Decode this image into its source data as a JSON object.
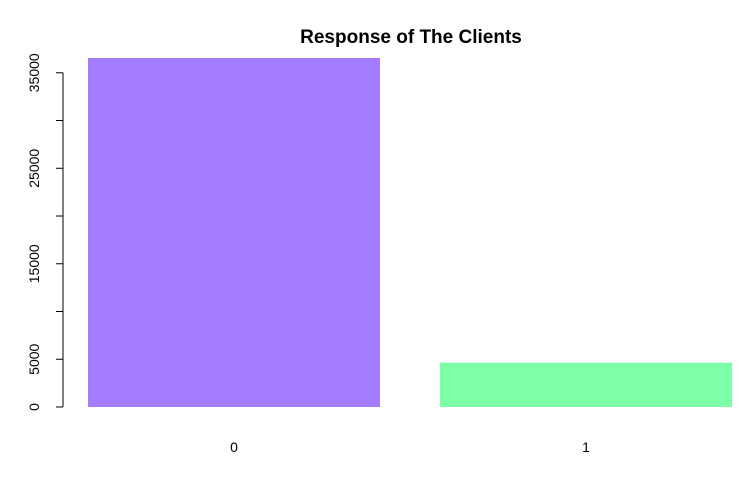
{
  "chart_data": {
    "type": "bar",
    "title": "Response of The Clients",
    "xlabel": "",
    "ylabel": "",
    "categories": [
      "0",
      "1"
    ],
    "values": [
      36548,
      4640
    ],
    "colors": [
      "#a47cff",
      "#7dffa7"
    ],
    "ylim": [
      0,
      36548
    ],
    "yticks": [
      0,
      5000,
      10000,
      15000,
      20000,
      25000,
      30000,
      35000
    ],
    "ytick_labels": [
      "0",
      "5000",
      "",
      "15000",
      "",
      "25000",
      "",
      "35000"
    ],
    "grid": false,
    "legend": "none"
  }
}
